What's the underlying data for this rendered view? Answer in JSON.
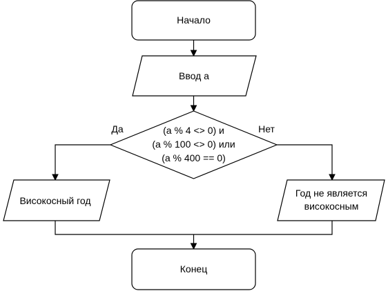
{
  "flowchart": {
    "start": {
      "label": "Начало"
    },
    "input": {
      "label": "Ввод a"
    },
    "condition": {
      "lines": [
        "(a % 4 <> 0) и",
        "(a % 100 <> 0) или",
        "(a % 400 == 0)"
      ]
    },
    "branch_yes": {
      "label": "Да"
    },
    "branch_no": {
      "label": "Нет"
    },
    "output_leap": {
      "label": "Високосный год"
    },
    "output_not_leap": {
      "lines": [
        "Год не является",
        "високосным"
      ]
    },
    "end": {
      "label": "Конец"
    }
  }
}
